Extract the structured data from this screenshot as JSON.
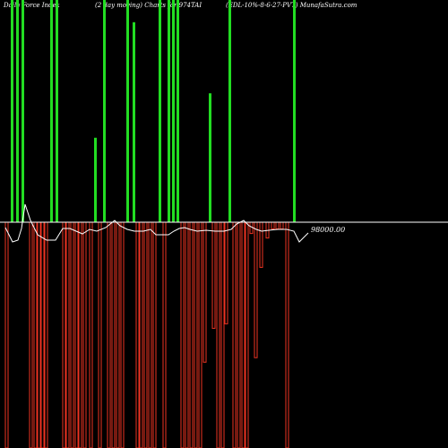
{
  "header": {
    "left": "Daily Force  Index",
    "middle": "(2 day moving) Charts for 974TAI",
    "right": "(EDL-10%-8-6-27-PVT) MunafaSutra.com"
  },
  "price_label": "98000.00",
  "colors": {
    "positive": "#22dd22",
    "negative": "#ee3322",
    "baseline": "#ffffff",
    "line": "#ffffff",
    "background": "#000000"
  },
  "chart_data": {
    "type": "bar",
    "baseline_value": 98000.0,
    "bars": [
      {
        "x": 8,
        "v": -100,
        "sign": "neg"
      },
      {
        "x": 14,
        "v": 100,
        "sign": "pos"
      },
      {
        "x": 20,
        "v": 100,
        "sign": "pos"
      },
      {
        "x": 26,
        "v": 100,
        "sign": "pos"
      },
      {
        "x": 35,
        "v": -100,
        "sign": "neg"
      },
      {
        "x": 40,
        "v": -100,
        "sign": "neg"
      },
      {
        "x": 44,
        "v": -100,
        "sign": "neg"
      },
      {
        "x": 48,
        "v": -100,
        "sign": "neg"
      },
      {
        "x": 52,
        "v": -100,
        "sign": "neg"
      },
      {
        "x": 58,
        "v": 100,
        "sign": "pos"
      },
      {
        "x": 64,
        "v": 100,
        "sign": "pos"
      },
      {
        "x": 72,
        "v": -100,
        "sign": "neg"
      },
      {
        "x": 76,
        "v": -100,
        "sign": "neg"
      },
      {
        "x": 81,
        "v": -100,
        "sign": "neg"
      },
      {
        "x": 86,
        "v": -100,
        "sign": "neg"
      },
      {
        "x": 90,
        "v": -100,
        "sign": "neg"
      },
      {
        "x": 95,
        "v": -100,
        "sign": "neg"
      },
      {
        "x": 102,
        "v": -100,
        "sign": "neg"
      },
      {
        "x": 107,
        "v": 38,
        "sign": "pos"
      },
      {
        "x": 112,
        "v": -100,
        "sign": "neg"
      },
      {
        "x": 117,
        "v": 100,
        "sign": "pos"
      },
      {
        "x": 122,
        "v": -100,
        "sign": "neg"
      },
      {
        "x": 127,
        "v": -100,
        "sign": "neg"
      },
      {
        "x": 132,
        "v": -100,
        "sign": "neg"
      },
      {
        "x": 137,
        "v": -100,
        "sign": "neg"
      },
      {
        "x": 143,
        "v": 100,
        "sign": "pos"
      },
      {
        "x": 150,
        "v": 90,
        "sign": "pos"
      },
      {
        "x": 154,
        "v": -100,
        "sign": "neg"
      },
      {
        "x": 158,
        "v": -100,
        "sign": "neg"
      },
      {
        "x": 163,
        "v": -100,
        "sign": "neg"
      },
      {
        "x": 168,
        "v": -100,
        "sign": "neg"
      },
      {
        "x": 173,
        "v": -100,
        "sign": "neg"
      },
      {
        "x": 179,
        "v": 100,
        "sign": "pos"
      },
      {
        "x": 184,
        "v": -100,
        "sign": "neg"
      },
      {
        "x": 189,
        "v": 100,
        "sign": "pos"
      },
      {
        "x": 194,
        "v": 100,
        "sign": "pos"
      },
      {
        "x": 199,
        "v": 100,
        "sign": "pos"
      },
      {
        "x": 204,
        "v": -100,
        "sign": "neg"
      },
      {
        "x": 209,
        "v": -100,
        "sign": "neg"
      },
      {
        "x": 214,
        "v": -100,
        "sign": "neg"
      },
      {
        "x": 219,
        "v": -100,
        "sign": "neg"
      },
      {
        "x": 224,
        "v": -100,
        "sign": "neg"
      },
      {
        "x": 229,
        "v": -62,
        "sign": "neg"
      },
      {
        "x": 235,
        "v": 58,
        "sign": "pos"
      },
      {
        "x": 239,
        "v": -47,
        "sign": "neg"
      },
      {
        "x": 244,
        "v": -100,
        "sign": "neg"
      },
      {
        "x": 249,
        "v": -100,
        "sign": "neg"
      },
      {
        "x": 253,
        "v": -45,
        "sign": "neg"
      },
      {
        "x": 257,
        "v": 100,
        "sign": "pos"
      },
      {
        "x": 262,
        "v": -100,
        "sign": "neg"
      },
      {
        "x": 267,
        "v": -100,
        "sign": "neg"
      },
      {
        "x": 272,
        "v": -100,
        "sign": "neg"
      },
      {
        "x": 276,
        "v": -100,
        "sign": "neg"
      },
      {
        "x": 281,
        "v": -5,
        "sign": "neg"
      },
      {
        "x": 286,
        "v": -60,
        "sign": "neg"
      },
      {
        "x": 292,
        "v": -20,
        "sign": "neg"
      },
      {
        "x": 299,
        "v": -7,
        "sign": "neg"
      },
      {
        "x": 305,
        "v": -3,
        "sign": "neg"
      },
      {
        "x": 310,
        "v": -3,
        "sign": "neg"
      },
      {
        "x": 315,
        "v": -3,
        "sign": "neg"
      },
      {
        "x": 321,
        "v": -100,
        "sign": "neg"
      },
      {
        "x": 329,
        "v": 100,
        "sign": "pos"
      }
    ],
    "line": [
      [
        6,
        254
      ],
      [
        10,
        262
      ],
      [
        14,
        270
      ],
      [
        20,
        268
      ],
      [
        24,
        255
      ],
      [
        28,
        228
      ],
      [
        34,
        246
      ],
      [
        42,
        262
      ],
      [
        52,
        268
      ],
      [
        62,
        268
      ],
      [
        70,
        255
      ],
      [
        78,
        255
      ],
      [
        85,
        258
      ],
      [
        92,
        261
      ],
      [
        100,
        256
      ],
      [
        108,
        258
      ],
      [
        118,
        254
      ],
      [
        128,
        246
      ],
      [
        134,
        252
      ],
      [
        142,
        256
      ],
      [
        150,
        258
      ],
      [
        160,
        258
      ],
      [
        168,
        256
      ],
      [
        174,
        262
      ],
      [
        182,
        262
      ],
      [
        188,
        262
      ],
      [
        194,
        258
      ],
      [
        200,
        255
      ],
      [
        206,
        254
      ],
      [
        212,
        256
      ],
      [
        220,
        258
      ],
      [
        230,
        257
      ],
      [
        240,
        258
      ],
      [
        250,
        258
      ],
      [
        258,
        256
      ],
      [
        264,
        250
      ],
      [
        272,
        246
      ],
      [
        278,
        252
      ],
      [
        286,
        256
      ],
      [
        292,
        258
      ],
      [
        300,
        257
      ],
      [
        310,
        256
      ],
      [
        320,
        256
      ],
      [
        328,
        258
      ],
      [
        334,
        270
      ],
      [
        340,
        264
      ],
      [
        344,
        260
      ]
    ]
  }
}
